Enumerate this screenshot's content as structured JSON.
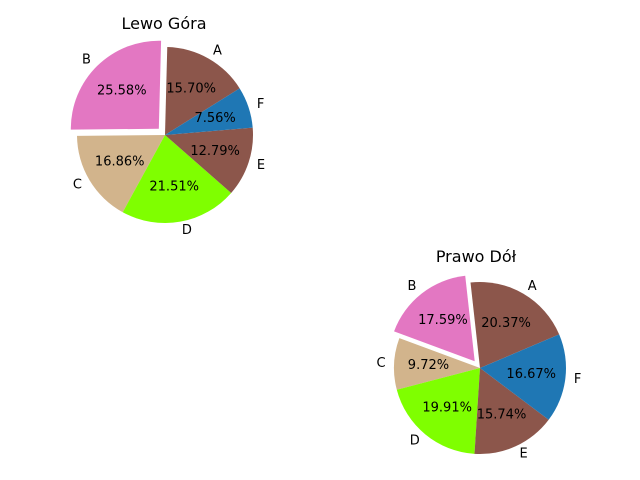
{
  "chart_data": [
    {
      "type": "pie",
      "title": "Lewo Góra",
      "slices": [
        {
          "label": "A",
          "percent": "15.70%",
          "value": 15.7,
          "color": "#8c564b",
          "explode": false
        },
        {
          "label": "B",
          "percent": "25.58%",
          "value": 25.58,
          "color": "#e377c2",
          "explode": true
        },
        {
          "label": "C",
          "percent": "16.86%",
          "value": 16.86,
          "color": "#d2b48c",
          "explode": false
        },
        {
          "label": "D",
          "percent": "21.51%",
          "value": 21.51,
          "color": "#7fff00",
          "explode": false
        },
        {
          "label": "E",
          "percent": "12.79%",
          "value": 12.79,
          "color": "#8c564b",
          "explode": false
        },
        {
          "label": "F",
          "percent": "7.56%",
          "value": 7.56,
          "color": "#1f77b4",
          "explode": false
        }
      ]
    },
    {
      "type": "pie",
      "title": "Prawo Dół",
      "slices": [
        {
          "label": "A",
          "percent": "20.37%",
          "value": 20.37,
          "color": "#8c564b",
          "explode": false
        },
        {
          "label": "B",
          "percent": "17.59%",
          "value": 17.59,
          "color": "#e377c2",
          "explode": true
        },
        {
          "label": "C",
          "percent": "9.72%",
          "value": 9.72,
          "color": "#d2b48c",
          "explode": false
        },
        {
          "label": "D",
          "percent": "19.91%",
          "value": 19.91,
          "color": "#7fff00",
          "explode": false
        },
        {
          "label": "E",
          "percent": "15.74%",
          "value": 15.74,
          "color": "#8c564b",
          "explode": false
        },
        {
          "label": "F",
          "percent": "16.67%",
          "value": 16.67,
          "color": "#1f77b4",
          "explode": false
        }
      ]
    }
  ]
}
